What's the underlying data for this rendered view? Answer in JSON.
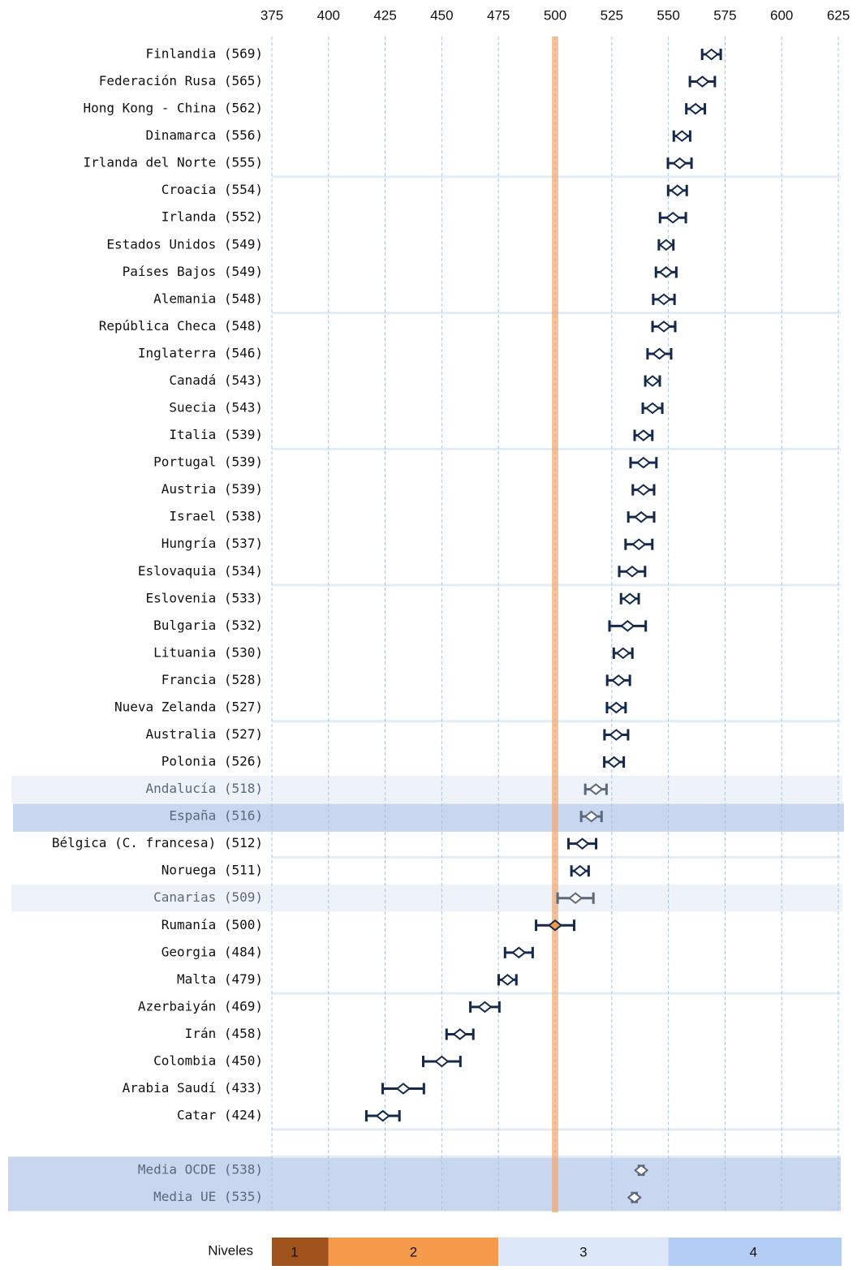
{
  "chart_data": {
    "type": "dot_errorbar",
    "xlim": [
      375,
      625
    ],
    "xticks": [
      375,
      400,
      425,
      450,
      475,
      500,
      525,
      550,
      575,
      600,
      625
    ],
    "grid": true,
    "reference": 500,
    "categories": [
      "Finlandia (569)",
      "Federación Rusa (565)",
      "Hong Kong - China (562)",
      "Dinamarca (556)",
      "Irlanda del Norte (555)",
      "Croacia (554)",
      "Irlanda (552)",
      "Estados Unidos (549)",
      "Países Bajos (549)",
      "Alemania (548)",
      "República Checa (548)",
      "Inglaterra (546)",
      "Canadá (543)",
      "Suecia (543)",
      "Italia (539)",
      "Portugal (539)",
      "Austria (539)",
      "Israel (538)",
      "Hungría (537)",
      "Eslovaquia (534)",
      "Eslovenia (533)",
      "Bulgaria (532)",
      "Lituania (530)",
      "Francia (528)",
      "Nueva Zelanda (527)",
      "Australia (527)",
      "Polonia (526)",
      "Andalucía (518)",
      "España (516)",
      "Bélgica (C. francesa) (512)",
      "Noruega (511)",
      "Canarias (509)",
      "Rumanía (500)",
      "Georgia (484)",
      "Malta (479)",
      "Azerbaiyán (469)",
      "Irán (458)",
      "Colombia (450)",
      "Arabia Saudí (433)",
      "Catar (424)"
    ],
    "values": [
      569,
      565,
      562,
      556,
      555,
      554,
      552,
      549,
      549,
      548,
      548,
      546,
      543,
      543,
      539,
      539,
      539,
      538,
      537,
      534,
      533,
      532,
      530,
      528,
      527,
      527,
      526,
      518,
      516,
      512,
      511,
      509,
      500,
      484,
      479,
      469,
      458,
      450,
      433,
      424
    ],
    "errors": [
      4.1,
      5.5,
      4.1,
      3.6,
      5.2,
      4.1,
      5.7,
      3.2,
      4.5,
      4.7,
      5,
      5.2,
      3.2,
      4.3,
      3.9,
      5.7,
      4.7,
      5.7,
      5.9,
      5.7,
      3.9,
      8,
      4.1,
      5,
      4.1,
      5.2,
      4.3,
      4.7,
      4.5,
      6.1,
      3.8,
      7.9,
      8.4,
      6.1,
      3.9,
      6.4,
      5.9,
      8.2,
      9.1,
      7.3
    ],
    "row_style": [
      "country",
      "country",
      "country",
      "country",
      "country",
      "country",
      "country",
      "country",
      "country",
      "country",
      "country",
      "country",
      "country",
      "country",
      "country",
      "country",
      "country",
      "country",
      "country",
      "country",
      "country",
      "country",
      "country",
      "country",
      "country",
      "country",
      "country",
      "region",
      "spain",
      "country",
      "country",
      "region",
      "country",
      "country",
      "country",
      "country",
      "country",
      "country",
      "country",
      "country"
    ],
    "color": "#15294a",
    "region_color": "#5c6878",
    "averages": {
      "categories": [
        "Media OCDE (538)",
        "Media UE (535)"
      ],
      "values": [
        538,
        535
      ],
      "errors": [
        1,
        1
      ]
    },
    "legend_title": "Niveles",
    "levels": [
      {
        "label": "1",
        "from": 375,
        "to": 400,
        "color": "#a0521d"
      },
      {
        "label": "2",
        "from": 400,
        "to": 475,
        "color": "#f5994b"
      },
      {
        "label": "3",
        "from": 475,
        "to": 550,
        "color": "#dce8f8"
      },
      {
        "label": "4",
        "from": 550,
        "to": 625,
        "color": "#b3cdf5"
      }
    ]
  }
}
